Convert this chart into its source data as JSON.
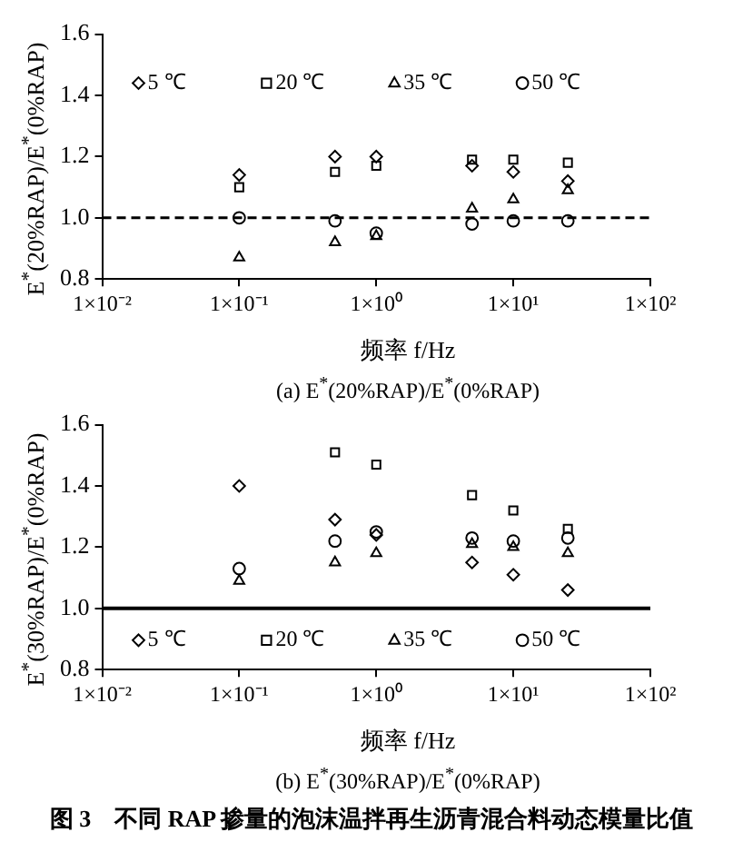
{
  "chart_data": [
    {
      "type": "scatter",
      "xlabel": "频率 f/Hz",
      "ylabel": "E$^{*}$(20%RAP)/E$^{*}$(0%RAP)",
      "annotations": [
        "(a) E$^{*}$(20%RAP)/E$^{*}$(0%RAP)"
      ],
      "log": "x",
      "grid": false,
      "legend": "top",
      "x": [
        0.1,
        0.5,
        1,
        5,
        10,
        25
      ],
      "xlim": [
        0.01,
        100
      ],
      "xticks": [
        {
          "value": 0.01,
          "label": "1×10⁻²"
        },
        {
          "value": 0.1,
          "label": "1×10⁻¹"
        },
        {
          "value": 1,
          "label": "1×10⁰"
        },
        {
          "value": 10,
          "label": "1×10¹"
        },
        {
          "value": 100,
          "label": "1×10²"
        }
      ],
      "ylim": [
        0.8,
        1.6
      ],
      "yticks": [
        0.8,
        {
          "value": 1,
          "label": "1.0"
        },
        1.2,
        1.4,
        1.6
      ],
      "ref_lines": [
        {
          "axis": "y",
          "value": 1.0,
          "color": "#000000",
          "line_style": "dashed"
        }
      ],
      "series": [
        {
          "name": "5 ℃",
          "color": "#000000",
          "marker": "diamond",
          "values": [
            1.14,
            1.2,
            1.2,
            1.17,
            1.15,
            1.12
          ]
        },
        {
          "name": "20 ℃",
          "color": "#000000",
          "marker": "square",
          "values": [
            1.1,
            1.15,
            1.17,
            1.19,
            1.19,
            1.18
          ]
        },
        {
          "name": "35 ℃",
          "color": "#000000",
          "marker": "triangle",
          "values": [
            0.87,
            0.92,
            0.94,
            1.03,
            1.06,
            1.09
          ]
        },
        {
          "name": "50 ℃",
          "color": "#000000",
          "marker": "circle",
          "values": [
            1.0,
            0.99,
            0.95,
            0.98,
            0.99,
            0.99
          ]
        }
      ]
    },
    {
      "type": "scatter",
      "xlabel": "频率 f/Hz",
      "ylabel": "E$^{*}$(30%RAP)/E$^{*}$(0%RAP)",
      "annotations": [
        "(b) E$^{*}$(30%RAP)/E$^{*}$(0%RAP)",
        "图 3　不同 RAP 掺量的泡沫温拌再生沥青混合料动态模量比值"
      ],
      "log": "x",
      "grid": false,
      "legend": "bottom",
      "x": [
        0.1,
        0.5,
        1,
        5,
        10,
        25
      ],
      "xlim": [
        0.01,
        100
      ],
      "xticks": [
        {
          "value": 0.01,
          "label": "1×10⁻²"
        },
        {
          "value": 0.1,
          "label": "1×10⁻¹"
        },
        {
          "value": 1,
          "label": "1×10⁰"
        },
        {
          "value": 10,
          "label": "1×10¹"
        },
        {
          "value": 100,
          "label": "1×10²"
        }
      ],
      "ylim": [
        0.8,
        1.6
      ],
      "yticks": [
        0.8,
        {
          "value": 1,
          "label": "1.0"
        },
        1.2,
        1.4,
        1.6
      ],
      "ref_lines": [
        {
          "axis": "y",
          "value": 1.0,
          "color": "#000000",
          "line_style": "solid"
        }
      ],
      "series": [
        {
          "name": "5 ℃",
          "color": "#000000",
          "marker": "diamond",
          "values": [
            1.4,
            1.29,
            1.24,
            1.15,
            1.11,
            1.06
          ]
        },
        {
          "name": "20 ℃",
          "color": "#000000",
          "marker": "square",
          "values": [
            null,
            1.51,
            1.47,
            1.37,
            1.32,
            1.26
          ]
        },
        {
          "name": "35 ℃",
          "color": "#000000",
          "marker": "triangle",
          "values": [
            1.09,
            1.15,
            1.18,
            1.21,
            1.2,
            1.18
          ]
        },
        {
          "name": "50 ℃",
          "color": "#000000",
          "marker": "circle",
          "values": [
            1.13,
            1.22,
            1.25,
            1.23,
            1.22,
            1.23
          ]
        }
      ]
    }
  ]
}
